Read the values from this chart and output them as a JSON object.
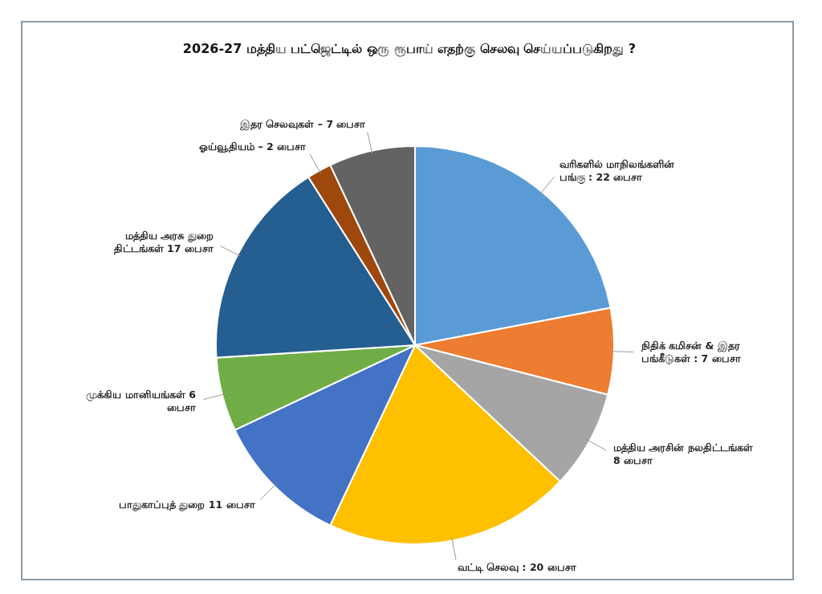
{
  "chart_data": {
    "type": "pie",
    "title": "2026-27 மத்திய பட்ஜெட்டில் ஒரு ரூபாய் எதற்கு செலவு செய்யப்படுகிறது ?",
    "categories": [
      "வரிகளில் மாநிலங்களின் பங்கு : 22 பைசா",
      "நிதிக் கமிசன் & இதர பங்கீடுகள் :  7 பைசா",
      "மத்திய அரசின் நலதிட்டங்கள் 8 பைசா",
      "வட்டி செலவு : 20 பைசா",
      "பாதுகாப்புத் துறை 11 பைசா",
      "முக்கிய மானியங்கள் 6 பைசா",
      "மத்திய அரசு துறை திட்டங்கள் 17 பைசா",
      "ஓய்வூதியம் – 2 பைசா",
      "இதர செலவுகள் – 7 பைசா"
    ],
    "values": [
      22,
      7,
      8,
      20,
      11,
      6,
      17,
      2,
      7
    ],
    "colors": [
      "#5b9bd5",
      "#ed7d31",
      "#a5a5a5",
      "#ffc000",
      "#4472c4",
      "#70ad47",
      "#255e91",
      "#9e480e",
      "#636363"
    ]
  }
}
